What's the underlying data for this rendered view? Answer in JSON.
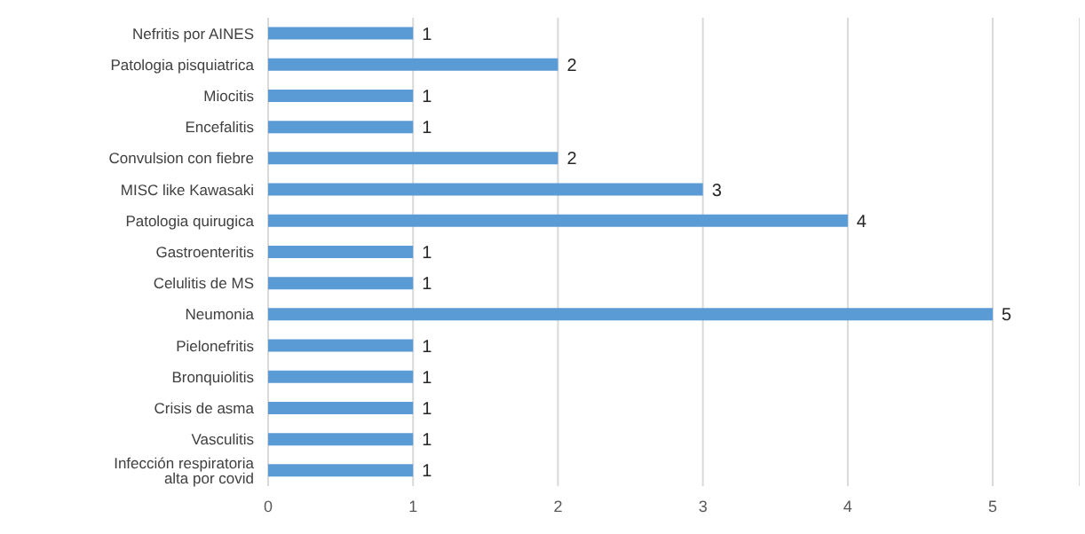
{
  "chart_data": {
    "type": "bar",
    "orientation": "horizontal",
    "categories": [
      "Nefritis por AINES",
      "Patologia pisquiatrica",
      "Miocitis",
      "Encefalitis",
      "Convulsion con fiebre",
      "MISC like Kawasaki",
      "Patologia quirugica",
      "Gastroenteritis",
      "Celulitis de MS",
      "Neumonia",
      "Pielonefritis",
      "Bronquiolitis",
      "Crisis de asma",
      "Vasculitis",
      "Infección respiratoria alta por covid"
    ],
    "values": [
      1,
      2,
      1,
      1,
      2,
      3,
      4,
      1,
      1,
      5,
      1,
      1,
      1,
      1,
      1
    ],
    "color": "#5b9bd5",
    "xlim": [
      0,
      5.6
    ],
    "xticks": [
      0,
      1,
      2,
      3,
      4,
      5
    ],
    "grid": "x",
    "data_labels": true
  }
}
